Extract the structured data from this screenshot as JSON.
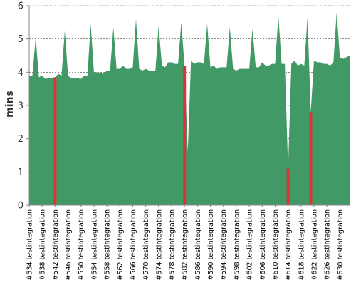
{
  "chart_data": {
    "type": "area",
    "title": "",
    "xlabel": "",
    "ylabel": "mins",
    "ylim": [
      0,
      6
    ],
    "yticks": [
      0,
      1,
      2,
      3,
      4,
      5,
      6
    ],
    "grid": true,
    "colors": {
      "area": "#419966",
      "failure": "#dd3333",
      "axis": "#888888"
    },
    "x": [
      534,
      535,
      536,
      537,
      538,
      539,
      540,
      541,
      542,
      543,
      544,
      545,
      546,
      547,
      548,
      549,
      550,
      551,
      552,
      553,
      554,
      555,
      556,
      557,
      558,
      559,
      560,
      561,
      562,
      563,
      564,
      565,
      566,
      567,
      568,
      569,
      570,
      571,
      572,
      573,
      574,
      575,
      576,
      577,
      578,
      579,
      580,
      581,
      582,
      583,
      584,
      585,
      586,
      587,
      588,
      589,
      590,
      591,
      592,
      593,
      594,
      595,
      596,
      597,
      598,
      599,
      600,
      601,
      602,
      603,
      604,
      605,
      606,
      607,
      608,
      609,
      610,
      611,
      612,
      613,
      614,
      615,
      616,
      617,
      618,
      619,
      620,
      621,
      622,
      623,
      624,
      625,
      626,
      627,
      628,
      629,
      630,
      631,
      632,
      633
    ],
    "values": [
      3.9,
      3.9,
      5.05,
      3.85,
      3.9,
      3.8,
      3.82,
      3.82,
      3.85,
      3.95,
      3.9,
      5.25,
      3.9,
      3.82,
      3.82,
      3.82,
      3.8,
      3.9,
      3.9,
      5.45,
      4.0,
      4.0,
      3.98,
      3.95,
      4.05,
      4.05,
      5.35,
      4.1,
      4.1,
      4.2,
      4.1,
      4.1,
      4.15,
      5.6,
      4.1,
      4.05,
      4.1,
      4.05,
      4.05,
      4.05,
      5.4,
      4.2,
      4.15,
      4.3,
      4.3,
      4.25,
      4.25,
      5.5,
      4.2,
      1.6,
      4.35,
      4.25,
      4.3,
      4.3,
      4.25,
      5.45,
      4.15,
      4.2,
      4.1,
      4.15,
      4.15,
      4.15,
      5.35,
      4.1,
      4.05,
      4.1,
      4.1,
      4.1,
      4.1,
      5.3,
      4.15,
      4.15,
      4.3,
      4.2,
      4.2,
      4.25,
      4.25,
      5.7,
      4.25,
      4.25,
      1.1,
      4.25,
      4.35,
      4.2,
      4.25,
      4.2,
      5.65,
      2.8,
      4.35,
      4.3,
      4.3,
      4.25,
      4.25,
      4.2,
      4.3,
      5.8,
      4.45,
      4.4,
      4.45,
      4.5
    ],
    "failures": [
      542,
      582,
      614,
      621
    ],
    "categories": [
      "#534 testintegration",
      "#538 testintegration",
      "#542 testintegration",
      "#546 testintegration",
      "#550 testintegration",
      "#554 testintegration",
      "#558 testintegration",
      "#562 testintegration",
      "#566 testintegration",
      "#570 testintegration",
      "#574 testintegration",
      "#578 testintegration",
      "#582 testintegration",
      "#586 testintegration",
      "#590 testintegration",
      "#594 testintegration",
      "#598 testintegration",
      "#602 testintegration",
      "#606 testintegration",
      "#610 testintegration",
      "#614 testintegration",
      "#618 testintegration",
      "#622 testintegration",
      "#626 testintegration",
      "#630 testintegration"
    ]
  }
}
